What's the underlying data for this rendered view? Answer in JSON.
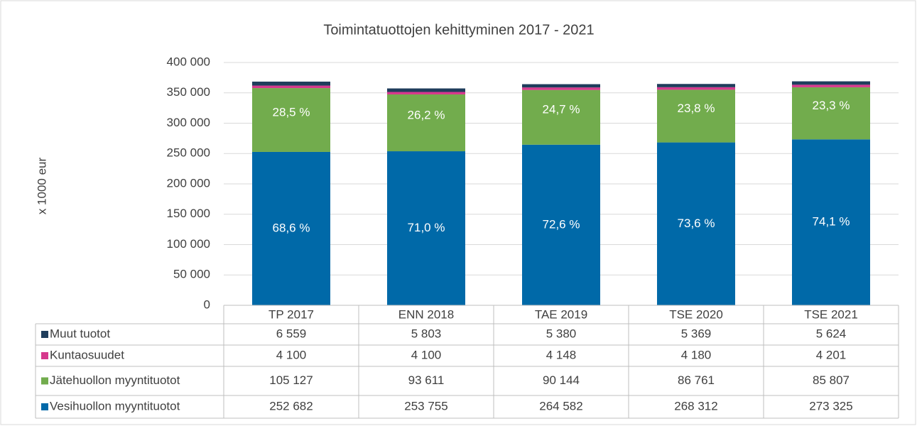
{
  "chart_data": {
    "type": "stacked_bar_table",
    "title": "Toimintatuottojen kehittyminen 2017 - 2021",
    "y_label": "x 1000 eur",
    "categories": [
      "TP 2017",
      "ENN 2018",
      "TAE 2019",
      "TSE 2020",
      "TSE 2021"
    ],
    "ylim": [
      0,
      400000
    ],
    "yticks": [
      0,
      {
        "value": 50000,
        "label": "50 000"
      },
      {
        "value": 100000,
        "label": "100 000"
      },
      {
        "value": 150000,
        "label": "150 000"
      },
      {
        "value": 200000,
        "label": "200 000"
      },
      {
        "value": 250000,
        "label": "250 000"
      },
      {
        "value": 300000,
        "label": "300 000"
      },
      {
        "value": 350000,
        "label": "350 000"
      },
      {
        "value": 400000,
        "label": "400 000"
      }
    ],
    "grid": true,
    "series": [
      {
        "name": "Vesihuollon myyntituotot",
        "color": "#0069a8",
        "values": [
          252682,
          253755,
          264582,
          268312,
          273325
        ],
        "value_labels": [
          "252 682",
          "253 755",
          "264 582",
          "268 312",
          "273 325"
        ],
        "share_labels": [
          "68,6 %",
          "71,0 %",
          "72,6 %",
          "73,6 %",
          "74,1 %"
        ]
      },
      {
        "name": "Jätehuollon myyntituotot",
        "color": "#72ac4d",
        "values": [
          105127,
          93611,
          90144,
          86761,
          85807
        ],
        "value_labels": [
          "105 127",
          "93 611",
          "90 144",
          "86 761",
          "85 807"
        ],
        "share_labels": [
          "28,5 %",
          "26,2 %",
          "24,7 %",
          "23,8 %",
          "23,3 %"
        ]
      },
      {
        "name": "Kuntaosuudet",
        "color": "#d6398d",
        "values": [
          4100,
          4100,
          4148,
          4180,
          4201
        ],
        "value_labels": [
          "4 100",
          "4 100",
          "4 148",
          "4 180",
          "4 201"
        ]
      },
      {
        "name": "Muut tuotot",
        "color": "#1f3d5c",
        "values": [
          6559,
          5803,
          5380,
          5369,
          5624
        ],
        "value_labels": [
          "6 559",
          "5 803",
          "5 380",
          "5 369",
          "5 624"
        ]
      }
    ]
  }
}
